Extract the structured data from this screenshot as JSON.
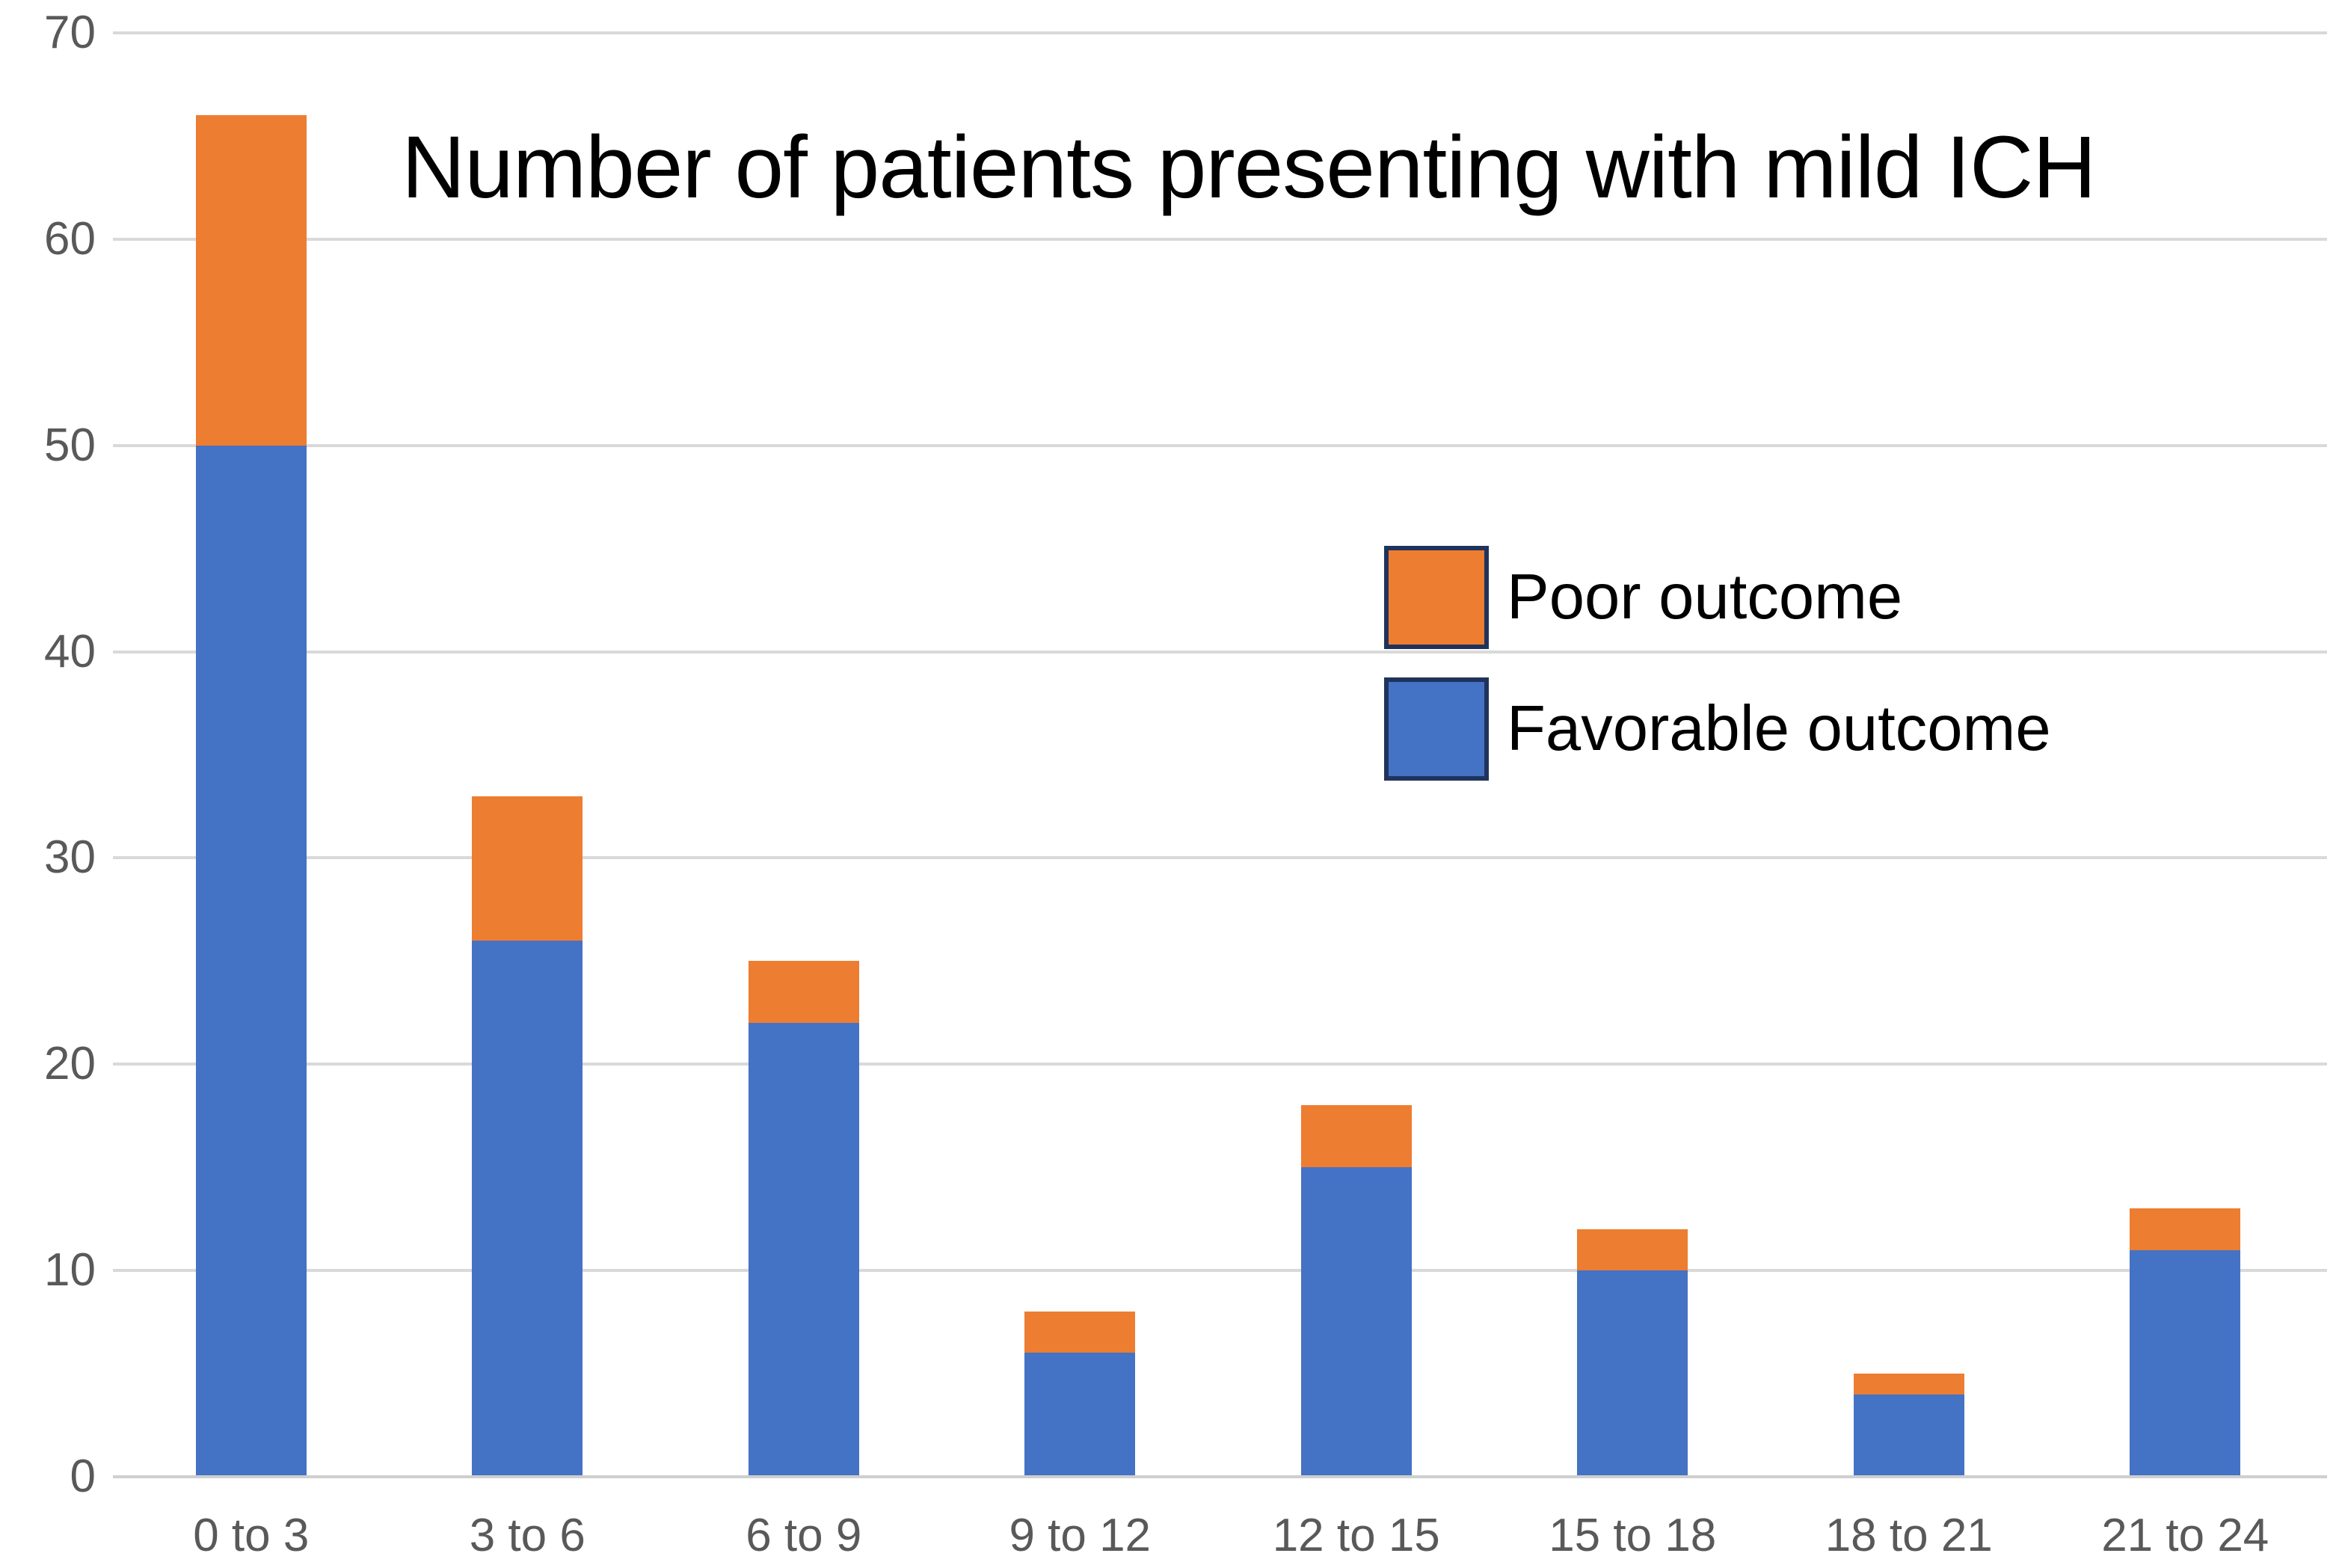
{
  "chart_data": {
    "type": "bar",
    "stacked": true,
    "title": "Number of patients presenting with mild ICH",
    "categories": [
      "0 to 3",
      "3 to 6",
      "6 to 9",
      "9 to 12",
      "12 to 15",
      "15 to 18",
      "18 to 21",
      "21 to 24"
    ],
    "series": [
      {
        "name": "Favorable outcome",
        "color": "#4472C4",
        "values": [
          50,
          26,
          22,
          6,
          15,
          10,
          4,
          11
        ]
      },
      {
        "name": "Poor outcome",
        "color": "#ED7D31",
        "values": [
          16,
          7,
          3,
          2,
          3,
          2,
          1,
          2
        ]
      }
    ],
    "stack_totals": [
      66,
      33,
      25,
      8,
      18,
      12,
      5,
      13
    ],
    "xlabel": "",
    "ylabel": "",
    "ylim": [
      0,
      70
    ],
    "yticks": [
      0,
      10,
      20,
      30,
      40,
      50,
      60,
      70
    ],
    "grid": "horizontal",
    "legend_position": "middle-right",
    "legend_order": [
      "Poor outcome",
      "Favorable outcome"
    ],
    "colors": {
      "gridline": "#D9D9D9",
      "axis_line": "#CFCFCF",
      "tick_label": "#595959",
      "title_text": "#000000",
      "legend_text": "#000000",
      "legend_swatch_border": "#1F335C",
      "background": "#FFFFFF"
    }
  }
}
